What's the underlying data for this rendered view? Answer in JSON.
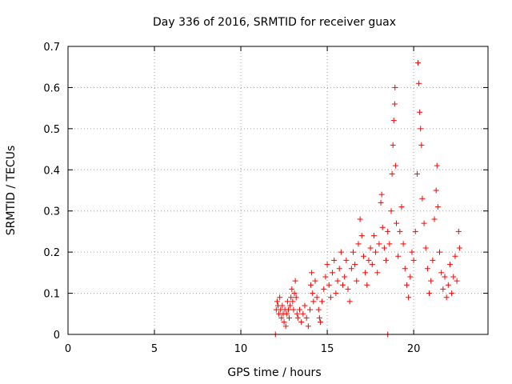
{
  "chart_data": {
    "type": "scatter",
    "title": "Day 336 of 2016, SRMTID for receiver guax",
    "xlabel": "GPS time / hours",
    "ylabel": "SRMTID / TECUs",
    "xlim": [
      0,
      24.3
    ],
    "ylim": [
      0,
      0.7
    ],
    "xticks": [
      0,
      5,
      10,
      15,
      20
    ],
    "yticks": [
      0,
      0.1,
      0.2,
      0.3,
      0.4,
      0.5,
      0.6,
      0.7
    ],
    "xtick_labels": [
      "0",
      "5",
      "10",
      "15",
      "20"
    ],
    "ytick_labels": [
      "0",
      "0.1",
      "0.2",
      "0.3",
      "0.4",
      "0.5",
      "0.6",
      "0.7"
    ],
    "grid": true,
    "marker": "+",
    "color": "#ff0000",
    "series": [
      {
        "name": "SRMTID",
        "points": [
          [
            12.0,
            0.0
          ],
          [
            12.05,
            0.06
          ],
          [
            12.1,
            0.08
          ],
          [
            12.15,
            0.07
          ],
          [
            12.2,
            0.05
          ],
          [
            12.25,
            0.09
          ],
          [
            12.3,
            0.06
          ],
          [
            12.35,
            0.04
          ],
          [
            12.4,
            0.07
          ],
          [
            12.45,
            0.05
          ],
          [
            12.5,
            0.03
          ],
          [
            12.55,
            0.06
          ],
          [
            12.6,
            0.02
          ],
          [
            12.65,
            0.05
          ],
          [
            12.7,
            0.08
          ],
          [
            12.75,
            0.06
          ],
          [
            12.8,
            0.04
          ],
          [
            12.85,
            0.07
          ],
          [
            12.9,
            0.09
          ],
          [
            12.95,
            0.11
          ],
          [
            13.0,
            0.08
          ],
          [
            13.05,
            0.06
          ],
          [
            13.1,
            0.1
          ],
          [
            13.15,
            0.13
          ],
          [
            13.2,
            0.09
          ],
          [
            13.25,
            0.05
          ],
          [
            13.3,
            0.04
          ],
          [
            13.4,
            0.06
          ],
          [
            13.5,
            0.03
          ],
          [
            13.6,
            0.05
          ],
          [
            13.7,
            0.07
          ],
          [
            13.8,
            0.04
          ],
          [
            13.9,
            0.02
          ],
          [
            14.0,
            0.06
          ],
          [
            14.05,
            0.12
          ],
          [
            14.1,
            0.15
          ],
          [
            14.15,
            0.1
          ],
          [
            14.2,
            0.08
          ],
          [
            14.3,
            0.13
          ],
          [
            14.4,
            0.09
          ],
          [
            14.5,
            0.06
          ],
          [
            14.55,
            0.04
          ],
          [
            14.6,
            0.03
          ],
          [
            14.7,
            0.08
          ],
          [
            14.8,
            0.11
          ],
          [
            14.9,
            0.14
          ],
          [
            15.0,
            0.17
          ],
          [
            15.1,
            0.12
          ],
          [
            15.2,
            0.09
          ],
          [
            15.3,
            0.15
          ],
          [
            15.4,
            0.18
          ],
          [
            15.5,
            0.1
          ],
          [
            15.6,
            0.13
          ],
          [
            15.7,
            0.16
          ],
          [
            15.8,
            0.2
          ],
          [
            15.9,
            0.12
          ],
          [
            16.0,
            0.14
          ],
          [
            16.1,
            0.18
          ],
          [
            16.2,
            0.11
          ],
          [
            16.3,
            0.08
          ],
          [
            16.4,
            0.16
          ],
          [
            16.5,
            0.2
          ],
          [
            16.6,
            0.17
          ],
          [
            16.7,
            0.13
          ],
          [
            16.8,
            0.22
          ],
          [
            16.9,
            0.28
          ],
          [
            17.0,
            0.24
          ],
          [
            17.1,
            0.19
          ],
          [
            17.2,
            0.15
          ],
          [
            17.3,
            0.12
          ],
          [
            17.4,
            0.18
          ],
          [
            17.5,
            0.21
          ],
          [
            17.6,
            0.17
          ],
          [
            17.7,
            0.24
          ],
          [
            17.8,
            0.2
          ],
          [
            17.9,
            0.15
          ],
          [
            18.0,
            0.22
          ],
          [
            18.1,
            0.32
          ],
          [
            18.15,
            0.34
          ],
          [
            18.2,
            0.26
          ],
          [
            18.3,
            0.21
          ],
          [
            18.4,
            0.18
          ],
          [
            18.5,
            0.0
          ],
          [
            18.5,
            0.25
          ],
          [
            18.6,
            0.22
          ],
          [
            18.7,
            0.3
          ],
          [
            18.75,
            0.39
          ],
          [
            18.8,
            0.46
          ],
          [
            18.85,
            0.52
          ],
          [
            18.9,
            0.56
          ],
          [
            18.92,
            0.6
          ],
          [
            18.95,
            0.41
          ],
          [
            19.0,
            0.27
          ],
          [
            19.1,
            0.19
          ],
          [
            19.2,
            0.25
          ],
          [
            19.3,
            0.31
          ],
          [
            19.4,
            0.22
          ],
          [
            19.5,
            0.16
          ],
          [
            19.6,
            0.12
          ],
          [
            19.7,
            0.09
          ],
          [
            19.8,
            0.14
          ],
          [
            19.9,
            0.2
          ],
          [
            20.0,
            0.18
          ],
          [
            20.1,
            0.25
          ],
          [
            20.2,
            0.39
          ],
          [
            20.25,
            0.66
          ],
          [
            20.3,
            0.61
          ],
          [
            20.35,
            0.54
          ],
          [
            20.4,
            0.5
          ],
          [
            20.45,
            0.46
          ],
          [
            20.5,
            0.33
          ],
          [
            20.6,
            0.27
          ],
          [
            20.7,
            0.21
          ],
          [
            20.8,
            0.16
          ],
          [
            20.9,
            0.1
          ],
          [
            21.0,
            0.13
          ],
          [
            21.1,
            0.18
          ],
          [
            21.2,
            0.28
          ],
          [
            21.3,
            0.35
          ],
          [
            21.35,
            0.41
          ],
          [
            21.4,
            0.31
          ],
          [
            21.5,
            0.2
          ],
          [
            21.6,
            0.15
          ],
          [
            21.7,
            0.11
          ],
          [
            21.8,
            0.14
          ],
          [
            21.9,
            0.09
          ],
          [
            22.0,
            0.12
          ],
          [
            22.1,
            0.17
          ],
          [
            22.2,
            0.1
          ],
          [
            22.3,
            0.14
          ],
          [
            22.4,
            0.19
          ],
          [
            22.5,
            0.13
          ],
          [
            22.6,
            0.25
          ],
          [
            22.65,
            0.21
          ]
        ]
      }
    ]
  }
}
